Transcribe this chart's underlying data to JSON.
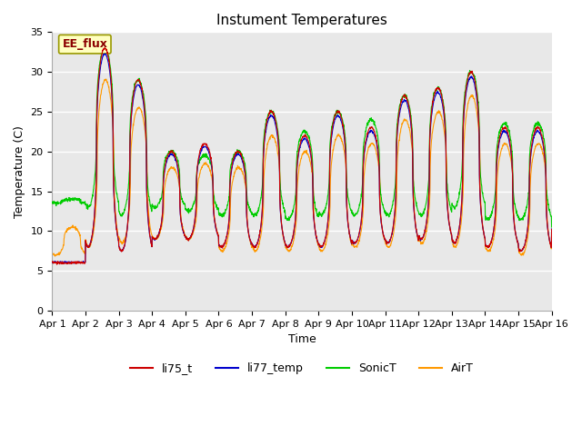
{
  "title": "Instument Temperatures",
  "xlabel": "Time",
  "ylabel": "Temperature (C)",
  "ylim": [
    0,
    35
  ],
  "yticks": [
    0,
    5,
    10,
    15,
    20,
    25,
    30,
    35
  ],
  "xtick_labels": [
    "Apr 1",
    "Apr 2",
    "Apr 3",
    "Apr 4",
    "Apr 5",
    "Apr 6",
    "Apr 7",
    "Apr 8",
    "Apr 9",
    "Apr 10",
    "Apr 11",
    "Apr 12",
    "Apr 13",
    "Apr 14",
    "Apr 15",
    "Apr 16"
  ],
  "annotation_text": "EE_flux",
  "series": {
    "li75_t": {
      "color": "#cc0000",
      "label": "li75_t"
    },
    "li77_temp": {
      "color": "#0000cc",
      "label": "li77_temp"
    },
    "SonicT": {
      "color": "#00cc00",
      "label": "SonicT"
    },
    "AirT": {
      "color": "#ff9900",
      "label": "AirT"
    }
  },
  "bg_color": "#e8e8e8",
  "fig_bg_color": "#ffffff",
  "title_fontsize": 11,
  "axis_label_fontsize": 9,
  "tick_fontsize": 8,
  "legend_fontsize": 9,
  "n_days": 15,
  "pts_per_day": 144,
  "main_peaks": [
    6.0,
    33.0,
    29.0,
    20.0,
    21.0,
    20.0,
    25.0,
    22.0,
    25.0,
    23.0,
    27.0,
    28.0,
    30.0,
    23.0,
    23.0,
    23.0
  ],
  "main_troughs": [
    6.0,
    8.0,
    7.5,
    9.0,
    9.0,
    8.0,
    8.0,
    8.0,
    8.0,
    8.5,
    8.5,
    9.0,
    8.5,
    8.0,
    7.5,
    10.0
  ],
  "sonic_peaks": [
    14.0,
    33.0,
    29.0,
    20.0,
    19.5,
    20.0,
    25.0,
    22.5,
    25.0,
    24.0,
    27.0,
    28.0,
    30.0,
    23.5,
    23.5,
    23.0
  ],
  "sonic_troughs": [
    13.5,
    13.0,
    12.0,
    13.0,
    12.5,
    12.0,
    12.0,
    11.5,
    12.0,
    12.0,
    12.0,
    12.0,
    13.0,
    11.5,
    11.5,
    10.0
  ],
  "air_peaks": [
    10.5,
    29.0,
    25.5,
    18.0,
    18.5,
    18.0,
    22.0,
    20.0,
    22.0,
    21.0,
    24.0,
    25.0,
    27.0,
    21.0,
    21.0,
    21.0
  ],
  "air_troughs": [
    7.0,
    8.0,
    8.5,
    9.0,
    9.0,
    7.5,
    7.5,
    7.5,
    7.5,
    8.0,
    8.0,
    8.5,
    8.0,
    7.5,
    7.0,
    9.5
  ],
  "peak_phase": 0.58,
  "sharpness": 2.5
}
